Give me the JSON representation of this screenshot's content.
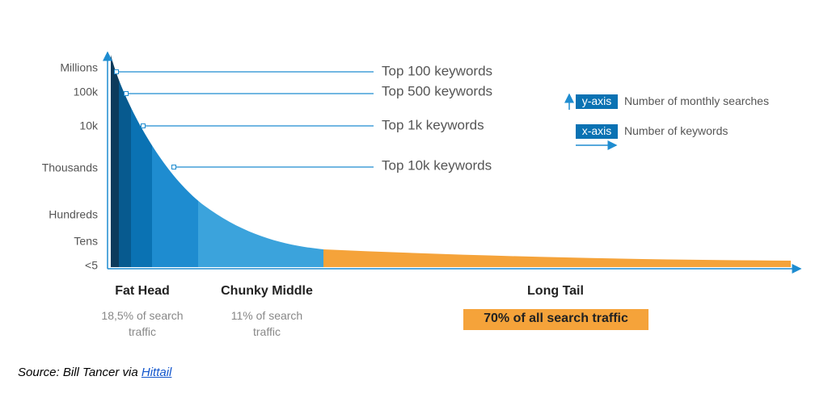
{
  "y_axis_labels": [
    "Millions",
    "100k",
    "10k",
    "Thousands",
    "Hundreds",
    "Tens",
    "<5"
  ],
  "callouts": [
    "Top 100 keywords",
    "Top 500 keywords",
    "Top 1k keywords",
    "Top 10k keywords"
  ],
  "legend": [
    {
      "tag": "y-axis",
      "text": "Number of monthly searches"
    },
    {
      "tag": "x-axis",
      "text": "Number of keywords"
    }
  ],
  "segments": [
    {
      "title": "Fat Head",
      "note": "18,5% of search traffic"
    },
    {
      "title": "Chunky Middle",
      "note": "11% of search traffic"
    },
    {
      "title": "Long Tail",
      "note": "70% of all search traffic"
    }
  ],
  "source": {
    "text": "Source: Bill Tancer via ",
    "link": "Hittail"
  }
}
